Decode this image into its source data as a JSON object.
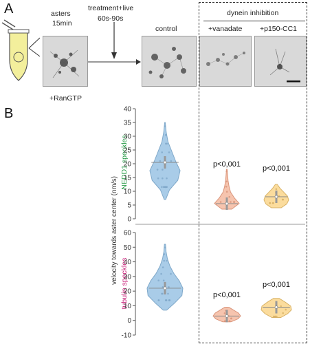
{
  "panels": {
    "a": "A",
    "b": "B"
  },
  "top": {
    "asters_label_1": "asters",
    "asters_label_2": "15min",
    "treatment_label_1": "treatment+live",
    "treatment_label_2": "60s-90s",
    "rangtp_label": "+RanGTP",
    "control_label": "control",
    "dynein_header": "dynein inhibition",
    "vanadate_label": "+vanadate",
    "p150_label": "+p150-CC1"
  },
  "colors": {
    "control_fill": "#a9cce8",
    "control_stroke": "#7fa8c9",
    "vanadate_fill": "#f6c4ae",
    "vanadate_stroke": "#d9957b",
    "p150_fill": "#fbdc9d",
    "p150_stroke": "#d8b266",
    "nedd1_label_color": "#2a9d4a",
    "tubulin_label_color": "#c81e78",
    "tube_fill": "#f3ef9c"
  },
  "chart_data": [
    {
      "type": "violin",
      "name": "NEDD1 speckles",
      "ylabel": "NEDD1 speckles",
      "ylim": [
        0,
        40
      ],
      "yticks": [
        0,
        5,
        10,
        15,
        20,
        25,
        30,
        35,
        40
      ],
      "categories": [
        "control",
        "+vanadate",
        "+p150-CC1"
      ],
      "medians": [
        20.5,
        5.5,
        8
      ],
      "annotations": [
        "",
        "p<0,001",
        "p<0,001"
      ]
    },
    {
      "type": "violin",
      "name": "tubulin speckles",
      "ylabel": "tubulin speckles",
      "ylim": [
        -10,
        60
      ],
      "yticks": [
        -10,
        0,
        10,
        20,
        30,
        40,
        50,
        60
      ],
      "categories": [
        "control",
        "+vanadate",
        "+p150-CC1"
      ],
      "medians": [
        22,
        3,
        9
      ],
      "annotations": [
        "",
        "p<0,001",
        "p<0,001"
      ]
    }
  ],
  "shared_ylabel": "velocity towards aster center (nm/s)"
}
